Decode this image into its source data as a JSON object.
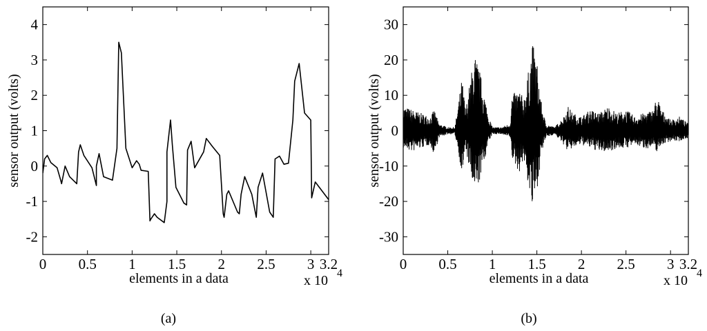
{
  "chart_data": [
    {
      "type": "line",
      "panel_label": "(a)",
      "xlabel": "elements in a data",
      "ylabel": "sensor output (volts)",
      "x_multiplier": "x 10",
      "x_multiplier_exponent": "4",
      "xlim": [
        0,
        3.2
      ],
      "ylim": [
        -2.5,
        4.5
      ],
      "x_ticks": [
        0,
        0.5,
        1,
        1.5,
        2,
        2.5,
        3,
        3.2
      ],
      "x_tick_labels": [
        "0",
        "0.5",
        "1",
        "1.5",
        "2",
        "2.5",
        "3",
        "3.2"
      ],
      "y_ticks": [
        -2,
        -1,
        0,
        1,
        2,
        3,
        4
      ],
      "y_tick_labels": [
        "-2",
        "-1",
        "0",
        "1",
        "2",
        "3",
        "4"
      ],
      "grid": false,
      "line_color": "#000000",
      "series": [
        {
          "x": [
            0,
            0.02,
            0.05,
            0.09,
            0.16,
            0.2,
            0.21,
            0.25,
            0.3,
            0.38,
            0.4,
            0.42,
            0.46,
            0.55,
            0.6,
            0.6,
            0.63,
            0.68,
            0.78,
            0.83,
            0.85,
            0.88,
            0.93,
            1.0,
            1.05,
            1.08,
            1.1,
            1.18,
            1.2,
            1.21,
            1.25,
            1.28,
            1.36,
            1.39,
            1.39,
            1.43,
            1.45,
            1.49,
            1.58,
            1.61,
            1.62,
            1.66,
            1.7,
            1.8,
            1.83,
            1.9,
            1.98,
            2.02,
            2.03,
            2.06,
            2.08,
            2.18,
            2.2,
            2.22,
            2.26,
            2.34,
            2.39,
            2.41,
            2.46,
            2.54,
            2.58,
            2.6,
            2.65,
            2.7,
            2.75,
            2.8,
            2.82,
            2.87,
            2.93,
            3.0,
            3.01,
            3.05,
            3.2
          ],
          "y": [
            -0.2,
            0.2,
            0.3,
            0.1,
            -0.05,
            -0.4,
            -0.5,
            0.0,
            -0.3,
            -0.5,
            0.4,
            0.6,
            0.3,
            -0.05,
            -0.55,
            0.0,
            0.35,
            -0.3,
            -0.4,
            0.5,
            3.5,
            3.2,
            0.5,
            -0.05,
            0.15,
            0.05,
            -0.12,
            -0.15,
            -1.55,
            -1.5,
            -1.35,
            -1.45,
            -1.6,
            -1.0,
            0.4,
            1.3,
            0.6,
            -0.6,
            -1.05,
            -1.1,
            0.45,
            0.7,
            -0.05,
            0.4,
            0.78,
            0.55,
            0.3,
            -1.35,
            -1.45,
            -0.8,
            -0.7,
            -1.3,
            -1.35,
            -0.8,
            -0.3,
            -0.8,
            -1.45,
            -0.6,
            -0.2,
            -1.3,
            -1.45,
            0.2,
            0.28,
            0.05,
            0.08,
            1.3,
            2.4,
            2.9,
            1.5,
            1.3,
            -0.9,
            -0.45,
            -0.95
          ]
        }
      ]
    },
    {
      "type": "line",
      "panel_label": "(b)",
      "xlabel": "elements in a data",
      "ylabel": "sensor output (volts)",
      "x_multiplier": "x 10",
      "x_multiplier_exponent": "4",
      "xlim": [
        0,
        3.2
      ],
      "ylim": [
        -35,
        35
      ],
      "x_ticks": [
        0,
        0.5,
        1,
        1.5,
        2,
        2.5,
        3,
        3.2
      ],
      "x_tick_labels": [
        "0",
        "0.5",
        "1",
        "1.5",
        "2",
        "2.5",
        "3",
        "3.2"
      ],
      "y_ticks": [
        -30,
        -20,
        -10,
        0,
        10,
        20,
        30
      ],
      "y_tick_labels": [
        "-30",
        "-20",
        "-10",
        "0",
        "10",
        "20",
        "30"
      ],
      "grid": false,
      "line_color": "#000000",
      "envelope": {
        "x": [
          0,
          0.1,
          0.2,
          0.3,
          0.35,
          0.4,
          0.5,
          0.58,
          0.62,
          0.66,
          0.7,
          0.75,
          0.8,
          0.85,
          0.9,
          0.95,
          1.0,
          1.1,
          1.2,
          1.22,
          1.3,
          1.35,
          1.4,
          1.45,
          1.5,
          1.55,
          1.6,
          1.7,
          1.8,
          1.85,
          1.9,
          2.0,
          2.1,
          2.2,
          2.3,
          2.4,
          2.5,
          2.6,
          2.7,
          2.8,
          2.85,
          2.9,
          3.0,
          3.1,
          3.2
        ],
        "upper": [
          7,
          6,
          5,
          4,
          6,
          2,
          1,
          1,
          8,
          15,
          6,
          14,
          22,
          18,
          12,
          5,
          1,
          1,
          2,
          10,
          12,
          9,
          16,
          25,
          20,
          8,
          2,
          1,
          4,
          7,
          5,
          4,
          6,
          5,
          7,
          5,
          6,
          4,
          5,
          6,
          10,
          6,
          3,
          4,
          2
        ],
        "lower": [
          -5,
          -6,
          -5,
          -4,
          -7,
          -2,
          -1,
          -1,
          -6,
          -13,
          -5,
          -12,
          -19,
          -15,
          -10,
          -4,
          -1,
          -1,
          -2,
          -8,
          -12,
          -8,
          -15,
          -23,
          -17,
          -7,
          -2,
          -1,
          -4,
          -6,
          -5,
          -4,
          -5,
          -6,
          -6,
          -5,
          -5,
          -4,
          -5,
          -5,
          -6,
          -4,
          -3,
          -3,
          -2
        ]
      }
    }
  ]
}
